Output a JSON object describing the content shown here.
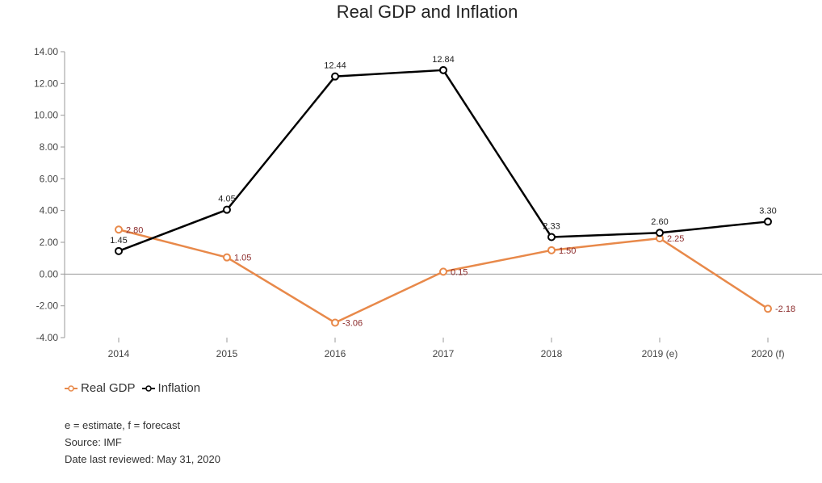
{
  "chart_data": {
    "type": "line",
    "title": "Real GDP and Inflation",
    "categories": [
      "2014",
      "2015",
      "2016",
      "2017",
      "2018",
      "2019 (e)",
      "2020 (f)"
    ],
    "y_ticks": [
      "14.00",
      "12.00",
      "10.00",
      "8.00",
      "6.00",
      "4.00",
      "2.00",
      "0.00",
      "-2.00",
      "-4.00"
    ],
    "ylim": [
      -4,
      14
    ],
    "grid": false,
    "legend_position": "bottom-left",
    "series": [
      {
        "name": "Real GDP",
        "color": "#e8894a",
        "label_color": "#8b2a2a",
        "values": [
          2.8,
          1.05,
          -3.06,
          0.15,
          1.5,
          2.25,
          -2.18
        ],
        "labels": [
          "2.80",
          "1.05",
          "-3.06",
          "0.15",
          "1.50",
          "2.25",
          "-2.18"
        ]
      },
      {
        "name": "Inflation",
        "color": "#000000",
        "label_color": "#222222",
        "values": [
          1.45,
          4.05,
          12.44,
          12.84,
          2.33,
          2.6,
          3.3
        ],
        "labels": [
          "1.45",
          "4.05",
          "12.44",
          "12.84",
          "2.33",
          "2.60",
          "3.30"
        ]
      }
    ]
  },
  "notes": {
    "line1": "e = estimate, f = forecast",
    "line2": "Source: IMF",
    "line3": "Date last reviewed: May 31, 2020"
  }
}
